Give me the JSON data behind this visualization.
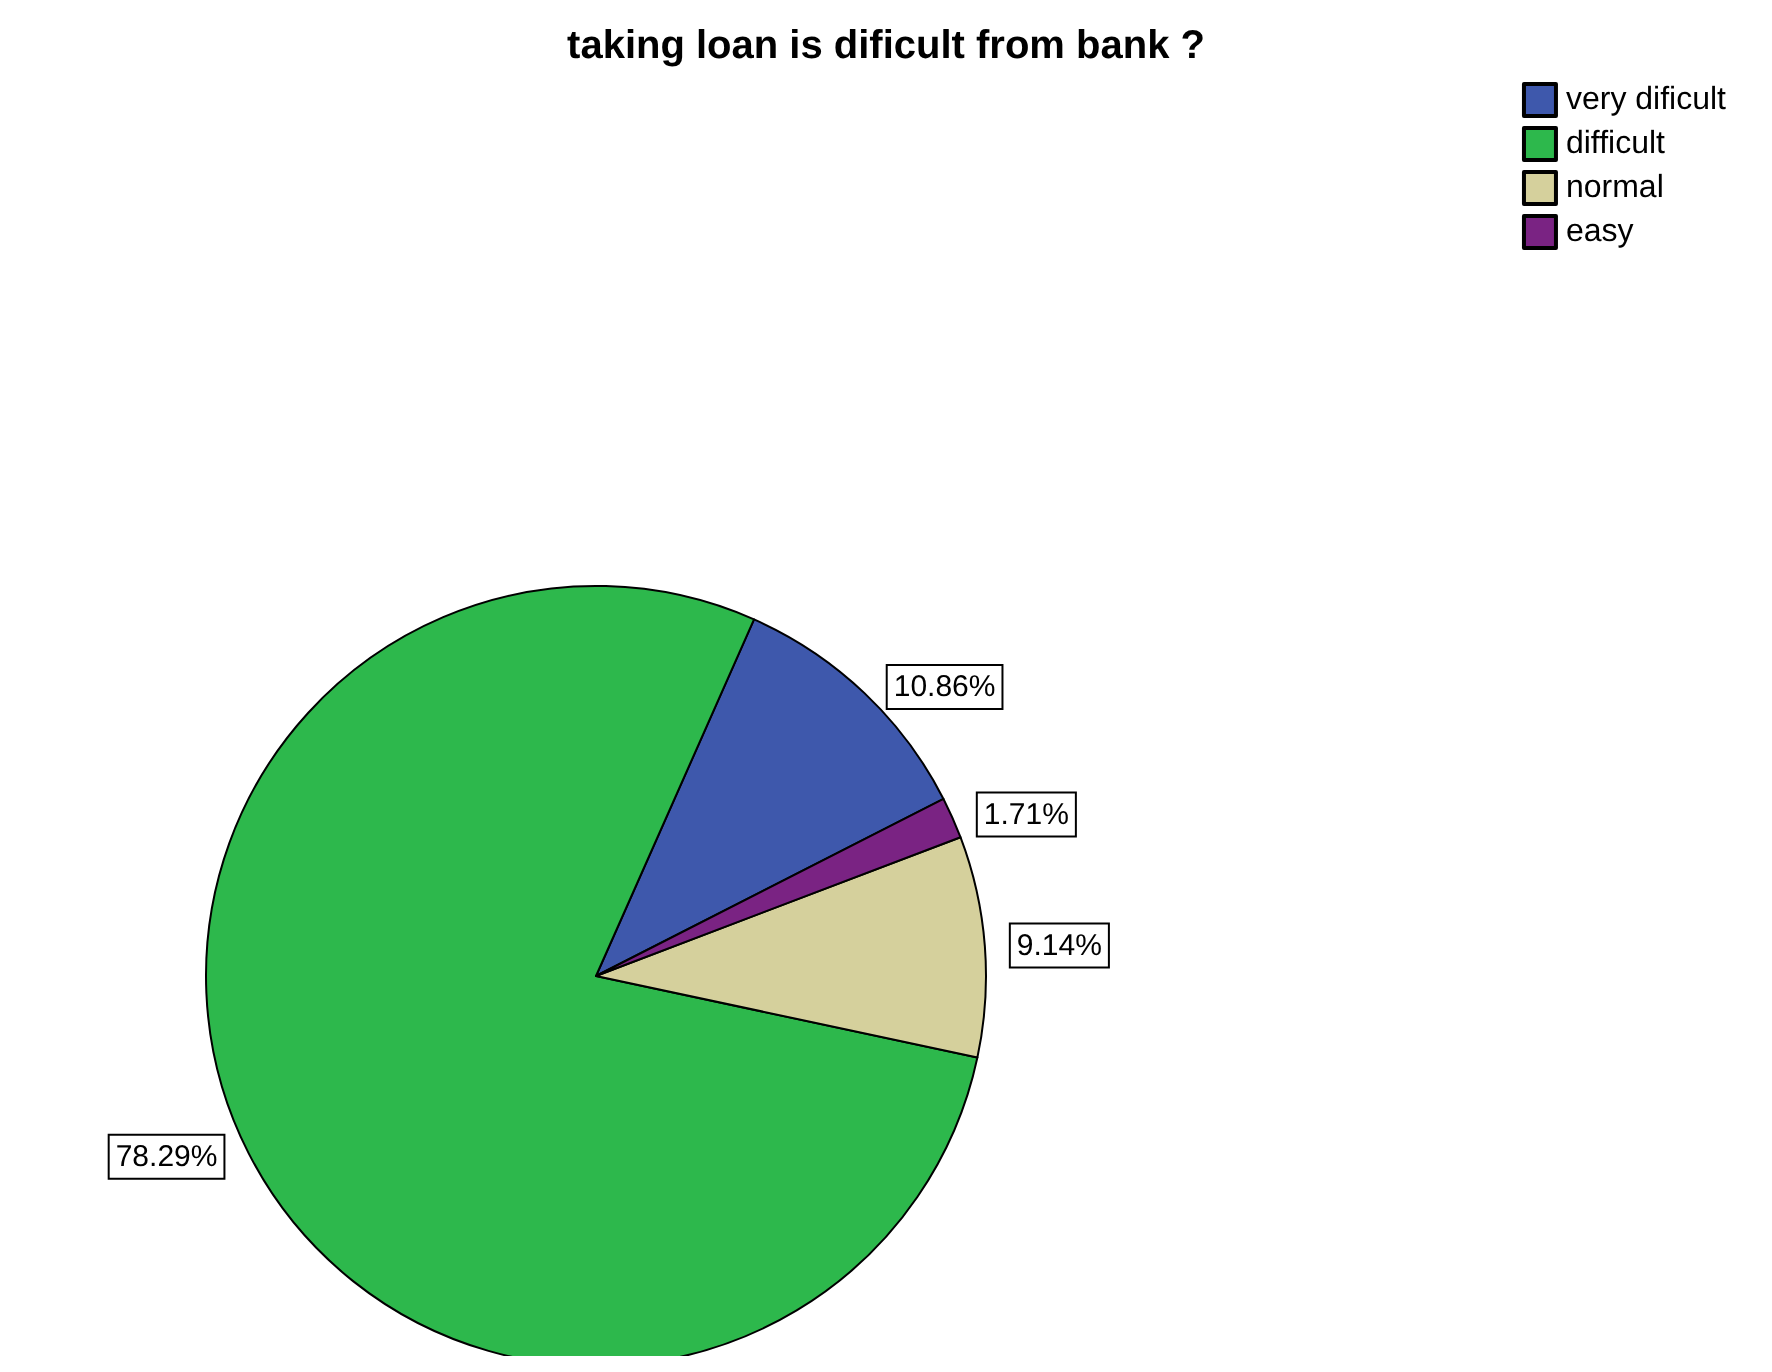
{
  "chart_data": {
    "type": "pie",
    "title": "taking loan is dificult from bank ?",
    "categories": [
      "very dificult",
      "difficult",
      "normal",
      "easy"
    ],
    "values": [
      10.86,
      78.29,
      9.14,
      1.71
    ],
    "colors": [
      "#3e58ac",
      "#2db84c",
      "#d5d09c",
      "#7a2383"
    ],
    "value_labels": [
      "10.86%",
      "78.29%",
      "9.14%",
      "1.71%"
    ],
    "legend": "top right"
  }
}
